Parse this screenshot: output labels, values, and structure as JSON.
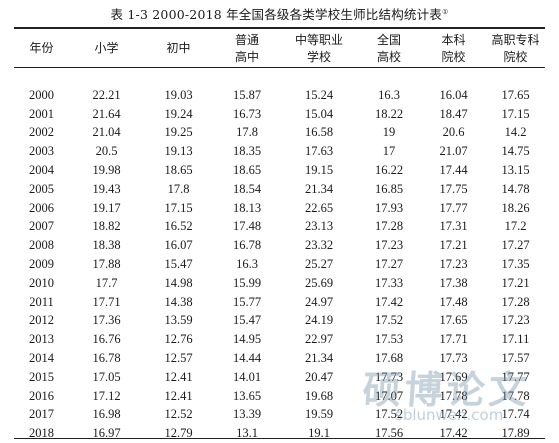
{
  "caption": {
    "text": "表 1-3  2000-2018 年全国各级各类学校生师比结构统计表",
    "footnote_mark": "①"
  },
  "table": {
    "headers": [
      {
        "line1": "年份",
        "line2": ""
      },
      {
        "line1": "小学",
        "line2": ""
      },
      {
        "line1": "初中",
        "line2": ""
      },
      {
        "line1": "普通",
        "line2": "高中"
      },
      {
        "line1": "中等职业",
        "line2": "学校"
      },
      {
        "line1": "全国",
        "line2": "高校"
      },
      {
        "line1": "本科",
        "line2": "院校"
      },
      {
        "line1": "高职专科",
        "line2": "院校"
      }
    ],
    "rows": [
      [
        "2000",
        "22.21",
        "19.03",
        "15.87",
        "15.24",
        "16.3",
        "16.04",
        "17.65"
      ],
      [
        "2001",
        "21.64",
        "19.24",
        "16.73",
        "15.04",
        "18.22",
        "18.47",
        "17.15"
      ],
      [
        "2002",
        "21.04",
        "19.25",
        "17.8",
        "16.58",
        "19",
        "20.6",
        "14.2"
      ],
      [
        "2003",
        "20.5",
        "19.13",
        "18.35",
        "17.63",
        "17",
        "21.07",
        "14.75"
      ],
      [
        "2004",
        "19.98",
        "18.65",
        "18.65",
        "19.15",
        "16.22",
        "17.44",
        "13.15"
      ],
      [
        "2005",
        "19.43",
        "17.8",
        "18.54",
        "21.34",
        "16.85",
        "17.75",
        "14.78"
      ],
      [
        "2006",
        "19.17",
        "17.15",
        "18.13",
        "22.65",
        "17.93",
        "17.77",
        "18.26"
      ],
      [
        "2007",
        "18.82",
        "16.52",
        "17.48",
        "23.13",
        "17.28",
        "17.31",
        "17.2"
      ],
      [
        "2008",
        "18.38",
        "16.07",
        "16.78",
        "23.32",
        "17.23",
        "17.21",
        "17.27"
      ],
      [
        "2009",
        "17.88",
        "15.47",
        "16.3",
        "25.27",
        "17.27",
        "17.23",
        "17.35"
      ],
      [
        "2010",
        "17.7",
        "14.98",
        "15.99",
        "25.69",
        "17.33",
        "17.38",
        "17.21"
      ],
      [
        "2011",
        "17.71",
        "14.38",
        "15.77",
        "24.97",
        "17.42",
        "17.48",
        "17.28"
      ],
      [
        "2012",
        "17.36",
        "13.59",
        "15.47",
        "24.19",
        "17.52",
        "17.65",
        "17.23"
      ],
      [
        "2013",
        "16.76",
        "12.76",
        "14.95",
        "22.97",
        "17.53",
        "17.71",
        "17.11"
      ],
      [
        "2014",
        "16.78",
        "12.57",
        "14.44",
        "21.34",
        "17.68",
        "17.73",
        "17.57"
      ],
      [
        "2015",
        "17.05",
        "12.41",
        "14.01",
        "20.47",
        "17.73",
        "17.69",
        "17.77"
      ],
      [
        "2016",
        "17.12",
        "12.41",
        "13.65",
        "19.68",
        "17.07",
        "17.78",
        "17.78"
      ],
      [
        "2017",
        "16.98",
        "12.52",
        "13.39",
        "19.59",
        "17.52",
        "17.42",
        "17.74"
      ],
      [
        "2018",
        "16.97",
        "12.79",
        "13.1",
        "19.1",
        "17.56",
        "17.42",
        "17.89"
      ]
    ]
  },
  "watermark": {
    "brand": "硕博论文",
    "url": "sblunwen.com"
  }
}
